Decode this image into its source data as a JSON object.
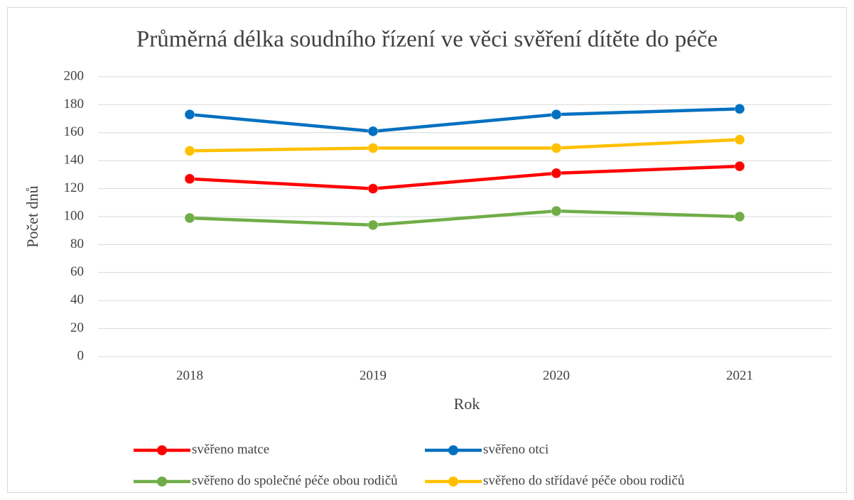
{
  "chart_data": {
    "type": "line",
    "title": "Průměrná délka soudního řízení ve věci svěření dítěte do péče",
    "x_label": "Rok",
    "y_label": "Počet dnů",
    "categories": [
      "2018",
      "2019",
      "2020",
      "2021"
    ],
    "ylim": [
      0,
      200
    ],
    "yticks": [
      0,
      20,
      40,
      60,
      80,
      100,
      120,
      140,
      160,
      180,
      200
    ],
    "grid": true,
    "legend": "bottom",
    "series": [
      {
        "name": "svěřeno matce",
        "color": "#ff0000",
        "values": [
          127,
          120,
          131,
          136
        ]
      },
      {
        "name": "svěřeno otci",
        "color": "#0070c0",
        "values": [
          173,
          161,
          173,
          177
        ]
      },
      {
        "name": "svěřeno do společné péče obou rodičů",
        "color": "#70ad47",
        "values": [
          99,
          94,
          104,
          100
        ]
      },
      {
        "name": "svěřeno do střídavé péče obou rodičů",
        "color": "#ffc000",
        "values": [
          147,
          149,
          149,
          155
        ]
      }
    ]
  }
}
